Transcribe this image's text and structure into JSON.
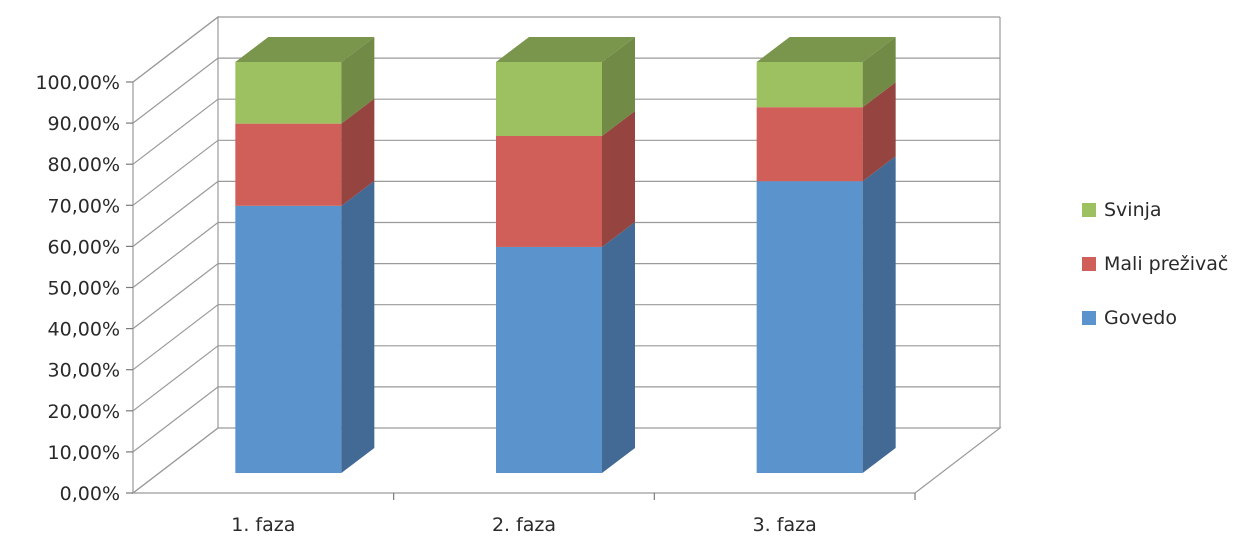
{
  "chart_data": {
    "type": "bar",
    "stacked": true,
    "three_d": true,
    "categories": [
      "1. faza",
      "2. faza",
      "3. faza"
    ],
    "series": [
      {
        "name": "Govedo",
        "values": [
          65,
          55,
          71
        ],
        "color": "#5b93cd"
      },
      {
        "name": "Mali preživač",
        "values": [
          20,
          27,
          18
        ],
        "color": "#cf5f58"
      },
      {
        "name": "Svinja",
        "values": [
          15,
          18,
          11
        ],
        "color": "#9dc061"
      }
    ],
    "ylim": [
      0,
      100
    ],
    "y_tick_labels": [
      "0,00%",
      "10,00%",
      "20,00%",
      "30,00%",
      "40,00%",
      "50,00%",
      "60,00%",
      "70,00%",
      "80,00%",
      "90,00%",
      "100,00%"
    ],
    "grid": true,
    "legend_position": "right"
  }
}
